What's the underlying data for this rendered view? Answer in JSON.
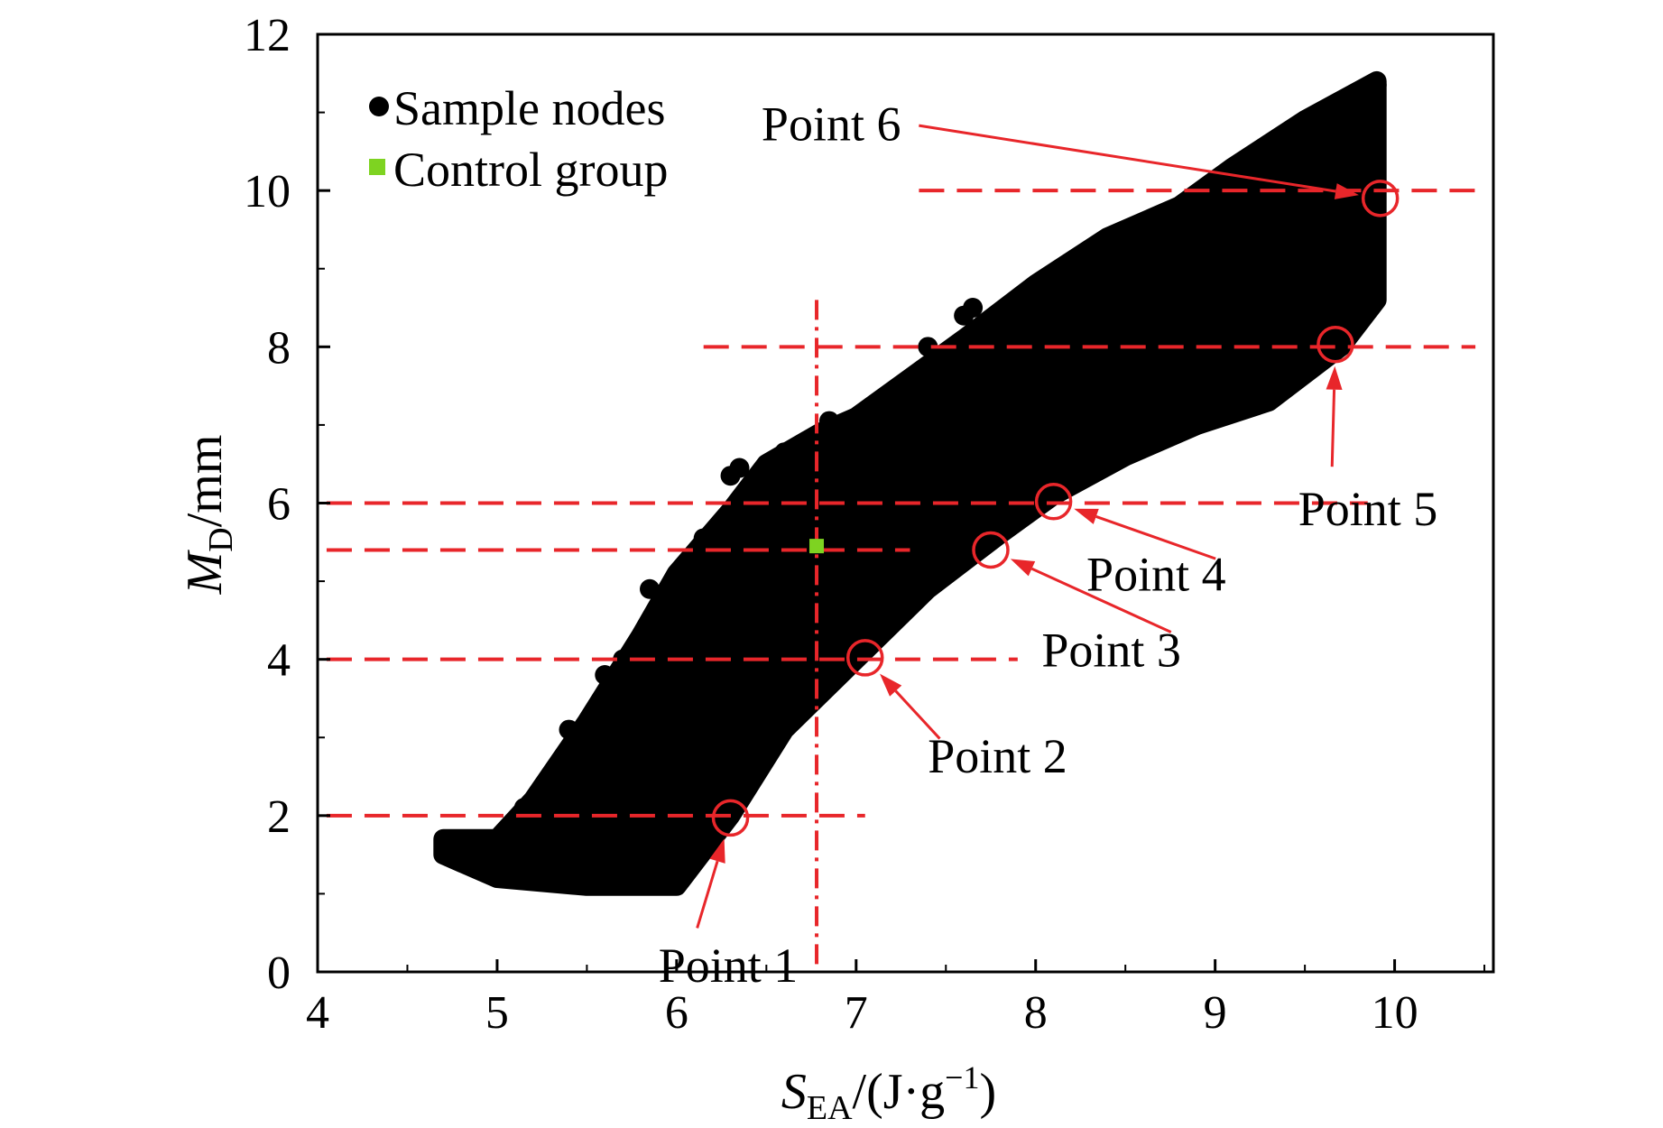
{
  "chart_data": {
    "type": "scatter",
    "xlabel": {
      "main": "S",
      "sub": "EA",
      "unit_pre": "/(J·g",
      "sup": "−1",
      "unit_post": ")"
    },
    "ylabel": {
      "main": "M",
      "sub": "D",
      "unit": "/mm"
    },
    "xlim": [
      4,
      10.55
    ],
    "ylim": [
      0,
      12
    ],
    "x_ticks": [
      4,
      5,
      6,
      7,
      8,
      9,
      10
    ],
    "y_ticks": [
      0,
      2,
      4,
      6,
      8,
      10,
      12
    ],
    "legend": {
      "position": "top-left",
      "entries": [
        {
          "label": "Sample nodes",
          "marker": "circle",
          "color": "#000000"
        },
        {
          "label": "Control group",
          "marker": "square",
          "color": "#7ed321"
        }
      ]
    },
    "series": [
      {
        "name": "Sample nodes",
        "kind": "point-cloud",
        "color": "#000000",
        "upper_boundary": [
          [
            4.7,
            1.7
          ],
          [
            5.0,
            1.7
          ],
          [
            5.2,
            2.2
          ],
          [
            5.5,
            3.2
          ],
          [
            5.8,
            4.3
          ],
          [
            6.0,
            5.1
          ],
          [
            6.3,
            5.9
          ],
          [
            6.5,
            6.5
          ],
          [
            6.8,
            6.9
          ],
          [
            7.0,
            7.1
          ],
          [
            7.3,
            7.6
          ],
          [
            7.6,
            8.1
          ],
          [
            8.0,
            8.8
          ],
          [
            8.4,
            9.4
          ],
          [
            8.8,
            9.8
          ],
          [
            9.1,
            10.3
          ],
          [
            9.5,
            10.9
          ],
          [
            9.9,
            11.4
          ]
        ],
        "lower_boundary": [
          [
            9.9,
            8.6
          ],
          [
            9.7,
            8.0
          ],
          [
            9.3,
            7.3
          ],
          [
            8.9,
            7.0
          ],
          [
            8.5,
            6.6
          ],
          [
            8.1,
            6.1
          ],
          [
            7.8,
            5.6
          ],
          [
            7.4,
            4.9
          ],
          [
            7.0,
            4.0
          ],
          [
            6.6,
            3.1
          ],
          [
            6.3,
            2.0
          ],
          [
            6.0,
            1.1
          ],
          [
            5.5,
            1.1
          ],
          [
            5.0,
            1.2
          ],
          [
            4.7,
            1.5
          ]
        ],
        "outliers": [
          [
            4.75,
            1.65
          ],
          [
            4.8,
            1.45
          ],
          [
            5.15,
            2.1
          ],
          [
            5.4,
            3.1
          ],
          [
            5.6,
            3.8
          ],
          [
            5.7,
            4.0
          ],
          [
            5.85,
            4.9
          ],
          [
            6.0,
            5.0
          ],
          [
            6.15,
            5.55
          ],
          [
            6.3,
            6.35
          ],
          [
            6.35,
            6.45
          ],
          [
            6.6,
            6.65
          ],
          [
            6.8,
            6.75
          ],
          [
            6.85,
            7.05
          ],
          [
            7.05,
            7.1
          ],
          [
            7.3,
            7.55
          ],
          [
            7.4,
            8.0
          ],
          [
            7.6,
            8.4
          ],
          [
            7.65,
            8.5
          ],
          [
            8.2,
            9.0
          ],
          [
            8.5,
            9.45
          ],
          [
            8.6,
            9.55
          ],
          [
            8.9,
            9.85
          ],
          [
            9.05,
            10.2
          ],
          [
            9.85,
            10.4
          ]
        ],
        "branch": [
          [
            9.1,
            10.25
          ],
          [
            9.3,
            10.5
          ],
          [
            9.5,
            10.75
          ],
          [
            9.7,
            11.05
          ],
          [
            9.9,
            11.35
          ]
        ]
      },
      {
        "name": "Control group",
        "color": "#7ed321",
        "points": [
          [
            6.78,
            5.45
          ]
        ]
      }
    ],
    "reference_lines": [
      {
        "type": "vertical",
        "x": 6.78,
        "y_range": [
          0.1,
          8.6
        ],
        "color": "#e8262a",
        "style": "dashdot"
      },
      {
        "type": "horizontal",
        "y": 2,
        "x_range": [
          4.05,
          7.05
        ],
        "color": "#e8262a",
        "style": "dashed"
      },
      {
        "type": "horizontal",
        "y": 4,
        "x_range": [
          4.05,
          7.9
        ],
        "color": "#e8262a",
        "style": "dashed"
      },
      {
        "type": "horizontal",
        "y": 5.4,
        "x_range": [
          4.05,
          7.3
        ],
        "color": "#e8262a",
        "style": "dashed"
      },
      {
        "type": "horizontal",
        "y": 6,
        "x_range": [
          4.05,
          9.85
        ],
        "color": "#e8262a",
        "style": "dashed"
      },
      {
        "type": "horizontal",
        "y": 8,
        "x_range": [
          6.15,
          10.45
        ],
        "color": "#e8262a",
        "style": "dashed"
      },
      {
        "type": "horizontal",
        "y": 10,
        "x_range": [
          7.35,
          10.5
        ],
        "color": "#e8262a",
        "style": "dashed"
      }
    ],
    "annotations": [
      {
        "label": "Point 1",
        "x": 6.3,
        "y": 1.97,
        "text_x": 6.1,
        "text_y": 0.45
      },
      {
        "label": "Point 2",
        "x": 7.05,
        "y": 4.02,
        "text_x": 7.5,
        "text_y": 2.9
      },
      {
        "label": "Point 3",
        "x": 7.75,
        "y": 5.4,
        "text_x": 8.8,
        "text_y": 4.3
      },
      {
        "label": "Point 4",
        "x": 8.1,
        "y": 6.02,
        "text_x": 9.05,
        "text_y": 5.25
      },
      {
        "label": "Point 5",
        "x": 9.67,
        "y": 8.03,
        "text_x": 9.65,
        "text_y": 6.35
      },
      {
        "label": "Point 6",
        "x": 9.92,
        "y": 9.9,
        "text_x": 7.3,
        "text_y": 10.85
      }
    ],
    "grid": false,
    "colors": {
      "axis": "#000000",
      "reference": "#e8262a",
      "marker_ring": "#e8262a"
    }
  }
}
